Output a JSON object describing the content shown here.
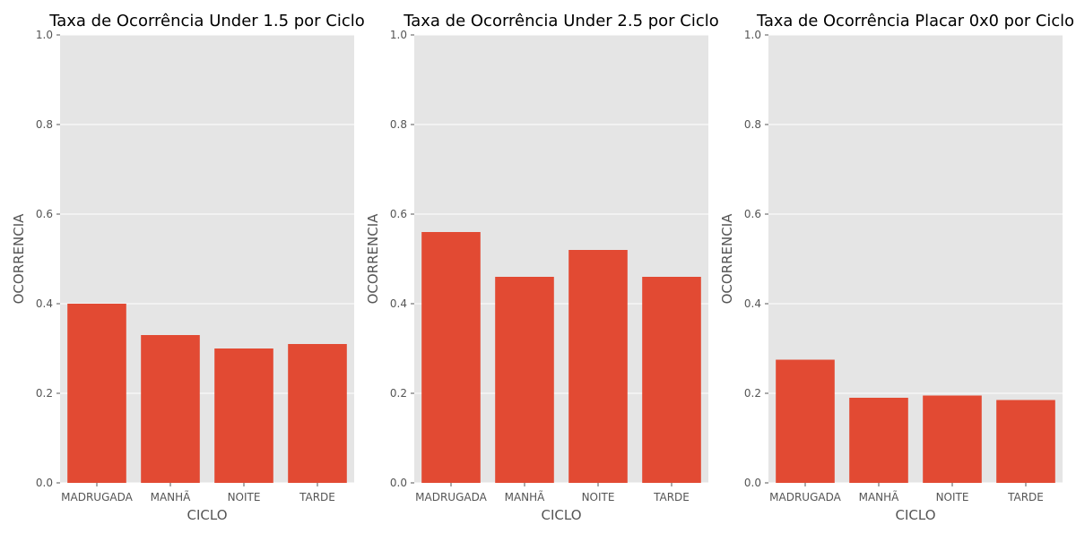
{
  "chart_data": [
    {
      "type": "bar",
      "title": "Taxa de Ocorrência Under 1.5 por Ciclo",
      "xlabel": "CICLO",
      "ylabel": "OCORRENCIA",
      "categories": [
        "MADRUGADA",
        "MANHÃ",
        "NOITE",
        "TARDE"
      ],
      "values": [
        0.4,
        0.33,
        0.3,
        0.31
      ],
      "ylim": [
        0,
        1.0
      ],
      "yticks": [
        "0.0",
        "0.2",
        "0.4",
        "0.6",
        "0.8",
        "1.0"
      ],
      "grid": true,
      "bar_color": "#E24A33",
      "background_color": "#E5E5E5"
    },
    {
      "type": "bar",
      "title": "Taxa de Ocorrência Under 2.5 por Ciclo",
      "xlabel": "CICLO",
      "ylabel": "OCORRENCIA",
      "categories": [
        "MADRUGADA",
        "MANHÃ",
        "NOITE",
        "TARDE"
      ],
      "values": [
        0.56,
        0.46,
        0.52,
        0.46
      ],
      "ylim": [
        0,
        1.0
      ],
      "yticks": [
        "0.0",
        "0.2",
        "0.4",
        "0.6",
        "0.8",
        "1.0"
      ],
      "grid": true,
      "bar_color": "#E24A33",
      "background_color": "#E5E5E5"
    },
    {
      "type": "bar",
      "title": "Taxa de Ocorrência Placar 0x0 por Ciclo",
      "xlabel": "CICLO",
      "ylabel": "OCORRENCIA",
      "categories": [
        "MADRUGADA",
        "MANHÃ",
        "NOITE",
        "TARDE"
      ],
      "values": [
        0.275,
        0.19,
        0.195,
        0.185
      ],
      "ylim": [
        0,
        1.0
      ],
      "yticks": [
        "0.0",
        "0.2",
        "0.4",
        "0.6",
        "0.8",
        "1.0"
      ],
      "grid": true,
      "bar_color": "#E24A33",
      "background_color": "#E5E5E5"
    }
  ]
}
